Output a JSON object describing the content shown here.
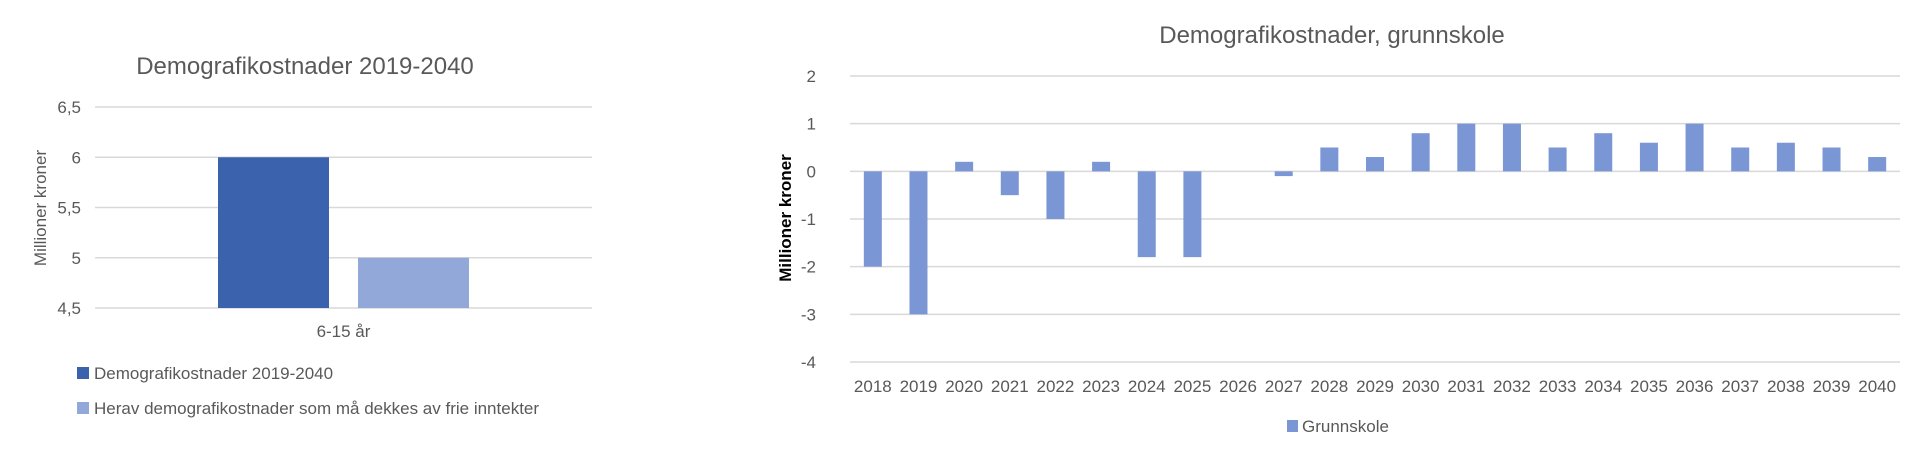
{
  "chart_data": [
    {
      "type": "bar",
      "title": "Demografikostnader 2019-2040",
      "ylabel": "Millioner kroner",
      "xlabel": "",
      "categories": [
        "6-15 år"
      ],
      "yticks": [
        "4,5",
        "5",
        "5,5",
        "6",
        "6,5"
      ],
      "ylim": [
        4.5,
        6.5
      ],
      "grid": true,
      "legend_position": "bottom",
      "series": [
        {
          "name": "Demografikostnader 2019-2040",
          "values": [
            6.0
          ],
          "color": "#3B63AD"
        },
        {
          "name": "Herav demografikostnader som må dekkes av frie inntekter",
          "values": [
            5.0
          ],
          "color": "#91A8D8"
        }
      ]
    },
    {
      "type": "bar",
      "title": "Demografikostnader, grunnskole",
      "ylabel": "Millioner kroner",
      "xlabel": "",
      "categories": [
        "2018",
        "2019",
        "2020",
        "2021",
        "2022",
        "2023",
        "2024",
        "2025",
        "2026",
        "2027",
        "2028",
        "2029",
        "2030",
        "2031",
        "2032",
        "2033",
        "2034",
        "2035",
        "2036",
        "2037",
        "2038",
        "2039",
        "2040"
      ],
      "yticks": [
        "-4",
        "-3",
        "-2",
        "-1",
        "0",
        "1",
        "2"
      ],
      "ylim": [
        -4,
        2
      ],
      "grid": true,
      "legend_position": "bottom",
      "series": [
        {
          "name": "Grunnskole",
          "values": [
            -2.0,
            -3.0,
            0.2,
            -0.5,
            -1.0,
            0.2,
            -1.8,
            -1.8,
            0.0,
            -0.1,
            0.5,
            0.3,
            0.8,
            1.0,
            1.0,
            0.5,
            0.8,
            0.6,
            1.0,
            0.5,
            0.6,
            0.5,
            0.3
          ],
          "color": "#7B96D4"
        }
      ]
    }
  ]
}
